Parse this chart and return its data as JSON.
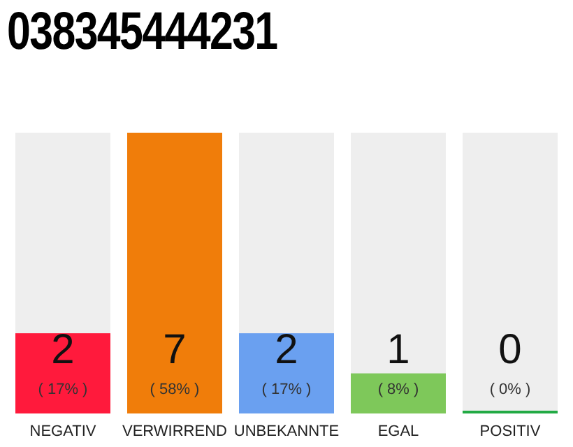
{
  "chart_data": {
    "type": "bar",
    "title": "038345444231",
    "categories": [
      "NEGATIV",
      "VERWIRREND",
      "UNBEKANNTE",
      "EGAL",
      "POSITIV"
    ],
    "values": [
      2,
      7,
      2,
      1,
      0
    ],
    "colors": [
      "#ff1a3c",
      "#f07d0a",
      "#6aa0f0",
      "#7ec85a",
      "#22aa44"
    ],
    "data_labels": true,
    "annotations": [
      "( 17% )",
      "( 58% )",
      "( 17% )",
      "( 8% )",
      "( 0% )"
    ]
  }
}
